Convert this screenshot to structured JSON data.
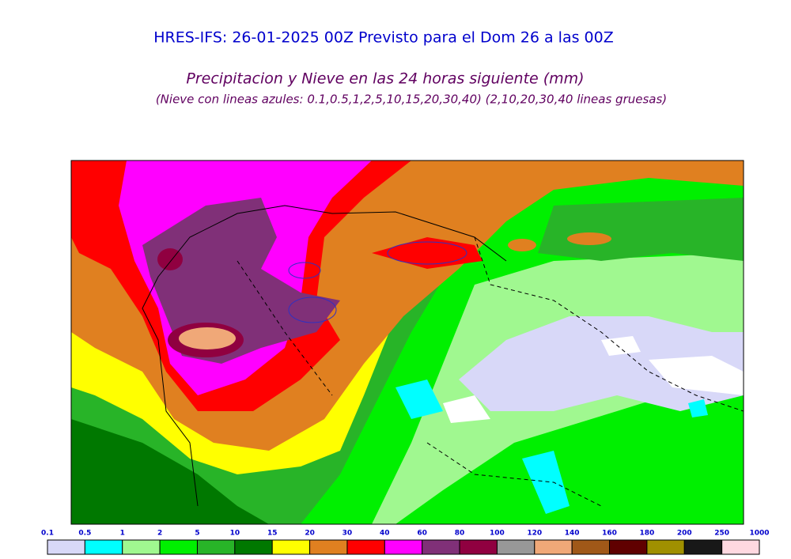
{
  "header": {
    "title": "HRES-IFS: 26-01-2025 00Z Previsto para el Dom 26 a las 00Z",
    "subtitle": "Precipitacion y Nieve en las 24 horas siguiente (mm)",
    "note": "(Nieve con lineas azules: 0.1,0.5,1,2,5,10,15,20,30,40)  (2,10,20,30,40 lineas gruesas)"
  },
  "legend": {
    "labels": [
      0.1,
      0.5,
      1,
      2,
      5,
      10,
      15,
      20,
      30,
      40,
      60,
      80,
      100,
      120,
      140,
      160,
      180,
      200,
      250,
      1000
    ],
    "colors": [
      "#d8d8f8",
      "#00ffff",
      "#a0f890",
      "#00f000",
      "#28b428",
      "#007800",
      "#ffff00",
      "#e08020",
      "#ff0000",
      "#ff00ff",
      "#803078",
      "#900040",
      "#989898",
      "#f0a878",
      "#a05818",
      "#600000",
      "#a09000",
      "#181818",
      "#ffd8e0"
    ]
  }
}
